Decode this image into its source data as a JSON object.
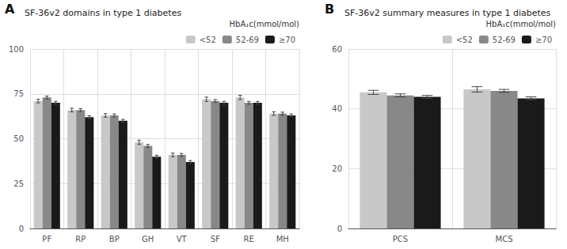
{
  "chart_data": [
    {
      "type": "bar",
      "title": "SF-36v2 domains in type 1 diabetes",
      "annotations": [
        "A"
      ],
      "legend_title": "HbA₁c(mmol/mol)",
      "categories": [
        "PF",
        "RP",
        "BP",
        "GH",
        "VT",
        "SF",
        "RE",
        "MH"
      ],
      "series": [
        {
          "name": "<52",
          "color": "#c8c8c8",
          "values": [
            71,
            66,
            63,
            48,
            41,
            72,
            73,
            64
          ],
          "errors": [
            1.0,
            1.0,
            1.0,
            1.2,
            1.0,
            1.2,
            1.2,
            1.0
          ]
        },
        {
          "name": "52-69",
          "color": "#888888",
          "values": [
            73,
            66,
            63,
            46,
            41,
            71,
            70,
            64
          ],
          "errors": [
            0.8,
            0.8,
            0.8,
            0.8,
            0.8,
            0.8,
            0.8,
            0.8
          ]
        },
        {
          "name": "≥70",
          "color": "#1a1a1a",
          "values": [
            70,
            62,
            60,
            40,
            37,
            70,
            70,
            63
          ],
          "errors": [
            0.8,
            0.8,
            0.8,
            0.8,
            0.8,
            0.8,
            0.8,
            0.8
          ]
        }
      ],
      "ylim": [
        0,
        100
      ],
      "yticks": [
        0,
        25,
        50,
        75,
        100
      ],
      "grid": true,
      "legend": "upper right"
    },
    {
      "type": "bar",
      "title": "SF-36v2 summary measures in type 1 diabetes",
      "annotations": [
        "B"
      ],
      "legend_title": "HbA₁c(mmol/mol)",
      "categories": [
        "PCS",
        "MCS"
      ],
      "series": [
        {
          "name": "<52",
          "color": "#c8c8c8",
          "values": [
            45.5,
            46.5
          ],
          "errors": [
            0.7,
            0.9
          ]
        },
        {
          "name": "52-69",
          "color": "#888888",
          "values": [
            44.5,
            46.0
          ],
          "errors": [
            0.5,
            0.5
          ]
        },
        {
          "name": "≥70",
          "color": "#1a1a1a",
          "values": [
            44.0,
            43.5
          ],
          "errors": [
            0.5,
            0.5
          ]
        }
      ],
      "ylim": [
        0,
        60
      ],
      "yticks": [
        0,
        20,
        40,
        60
      ],
      "grid": true,
      "legend": "upper right"
    }
  ]
}
